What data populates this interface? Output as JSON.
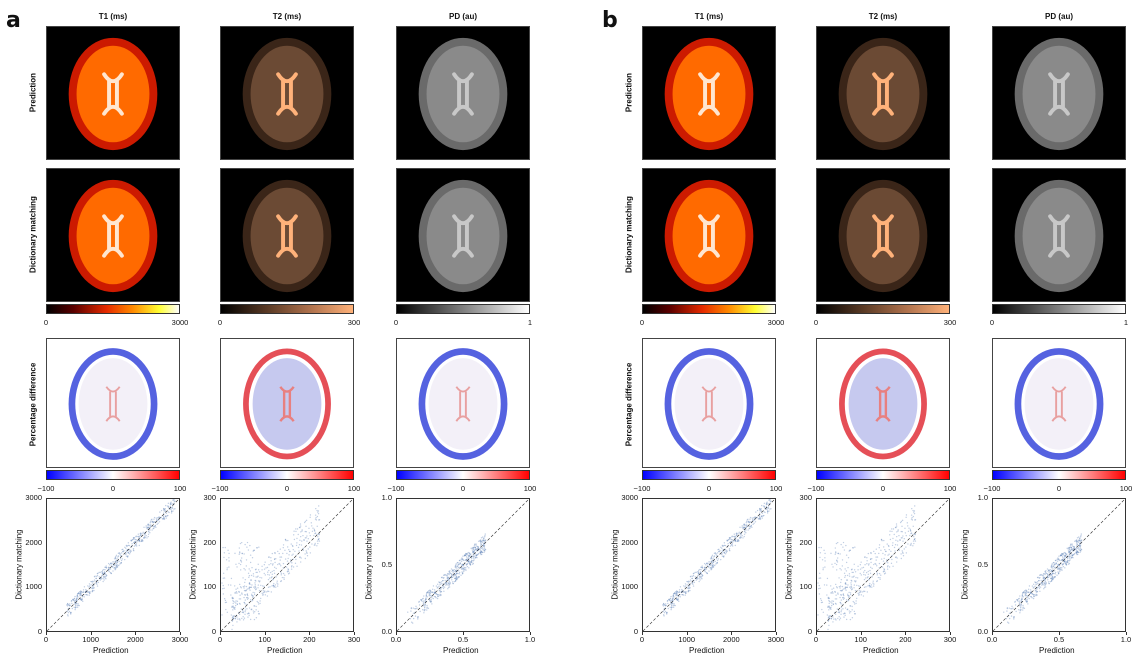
{
  "panels": [
    {
      "letter": "a",
      "columns": [
        {
          "title": "T1 (ms)",
          "colormap": "hot",
          "cbar_ticks": [
            "0",
            "3000"
          ],
          "diff_ticks": [
            "−100",
            "0",
            "100"
          ],
          "scatter": {
            "xticks": [
              "0",
              "1000",
              "2000",
              "3000"
            ],
            "yticks": [
              "0",
              "1000",
              "2000",
              "3000"
            ],
            "xlabel": "Prediction",
            "ylabel": "Dictionary matching"
          }
        },
        {
          "title": "T2 (ms)",
          "colormap": "copper",
          "cbar_ticks": [
            "0",
            "300"
          ],
          "diff_ticks": [
            "−100",
            "0",
            "100"
          ],
          "scatter": {
            "xticks": [
              "0",
              "100",
              "200",
              "300"
            ],
            "yticks": [
              "0",
              "100",
              "200",
              "300"
            ],
            "xlabel": "Prediction",
            "ylabel": "Dictionary matching"
          }
        },
        {
          "title": "PD (au)",
          "colormap": "gray",
          "cbar_ticks": [
            "0",
            "1"
          ],
          "diff_ticks": [
            "−100",
            "0",
            "100"
          ],
          "scatter": {
            "xticks": [
              "0.0",
              "0.5",
              "1.0"
            ],
            "yticks": [
              "0.0",
              "0.5",
              "1.0"
            ],
            "xlabel": "Prediction",
            "ylabel": "Dictionary matching"
          }
        }
      ]
    },
    {
      "letter": "b",
      "columns": [
        {
          "title": "T1 (ms)",
          "colormap": "hot",
          "cbar_ticks": [
            "0",
            "3000"
          ],
          "diff_ticks": [
            "−100",
            "0",
            "100"
          ],
          "scatter": {
            "xticks": [
              "0",
              "1000",
              "2000",
              "3000"
            ],
            "yticks": [
              "0",
              "1000",
              "2000",
              "3000"
            ],
            "xlabel": "Prediction",
            "ylabel": "Dictionary matching"
          }
        },
        {
          "title": "T2 (ms)",
          "colormap": "copper",
          "cbar_ticks": [
            "0",
            "300"
          ],
          "diff_ticks": [
            "−100",
            "0",
            "100"
          ],
          "scatter": {
            "xticks": [
              "0",
              "100",
              "200",
              "300"
            ],
            "yticks": [
              "0",
              "100",
              "200",
              "300"
            ],
            "xlabel": "Prediction",
            "ylabel": "Dictionary matching"
          }
        },
        {
          "title": "PD (au)",
          "colormap": "gray",
          "cbar_ticks": [
            "0",
            "1"
          ],
          "diff_ticks": [
            "−100",
            "0",
            "100"
          ],
          "scatter": {
            "xticks": [
              "0.0",
              "0.5",
              "1.0"
            ],
            "yticks": [
              "0.0",
              "0.5",
              "1.0"
            ],
            "xlabel": "Prediction",
            "ylabel": "Dictionary matching"
          }
        }
      ]
    }
  ],
  "row_labels": {
    "prediction": "Prediction",
    "dictionary": "Dictionary matching",
    "difference": "Percentage difference"
  },
  "colors": {
    "hot_start": "#000000",
    "hot_mid": "#e52a00",
    "hot_high": "#ffff33",
    "copper_end": "#ffb27a",
    "diff_neg": "#0000ff",
    "diff_pos": "#ff0000",
    "scatter_point": "#4a72b0"
  }
}
